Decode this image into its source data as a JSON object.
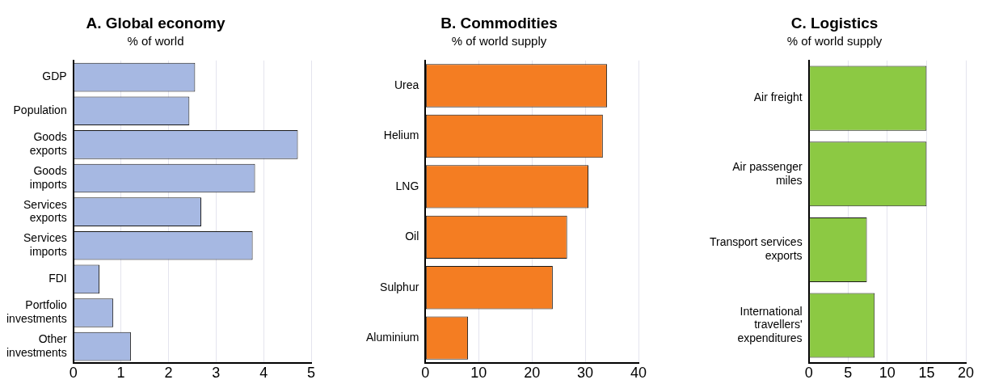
{
  "chart_data": [
    {
      "type": "bar",
      "orientation": "horizontal",
      "title": "A. Global economy",
      "subtitle": "% of world",
      "categories": [
        "GDP",
        "Population",
        "Goods\nexports",
        "Goods\nimports",
        "Services\nexports",
        "Services\nimports",
        "FDI",
        "Portfolio\ninvestments",
        "Other\ninvestments"
      ],
      "values": [
        2.56,
        2.44,
        4.72,
        3.82,
        2.69,
        3.77,
        0.55,
        0.84,
        1.21
      ],
      "color": "#a6b8e2",
      "xlim": [
        0,
        5
      ],
      "xticks": [
        0,
        1,
        2,
        3,
        4,
        5
      ],
      "grid": "x"
    },
    {
      "type": "bar",
      "orientation": "horizontal",
      "title": "B. Commodities",
      "subtitle": "% of world supply",
      "categories": [
        "Urea",
        "Helium",
        "LNG",
        "Oil",
        "Sulphur",
        "Aluminium"
      ],
      "values": [
        34.1,
        33.3,
        30.6,
        26.6,
        23.9,
        8.0
      ],
      "color": "#f47d22",
      "xlim": [
        0,
        40
      ],
      "xticks": [
        0,
        10,
        20,
        30,
        40
      ],
      "grid": "x"
    },
    {
      "type": "bar",
      "orientation": "horizontal",
      "title": "C. Logistics",
      "subtitle": "% of world supply",
      "categories": [
        "Air freight",
        "Air passenger\nmiles",
        "Transport services\nexports",
        "International\ntravellers'\nexpenditures"
      ],
      "values": [
        15.0,
        15.0,
        7.4,
        8.4
      ],
      "color": "#8cc943",
      "xlim": [
        0,
        20
      ],
      "xticks": [
        0,
        5,
        10,
        15,
        20
      ],
      "grid": "x"
    }
  ]
}
